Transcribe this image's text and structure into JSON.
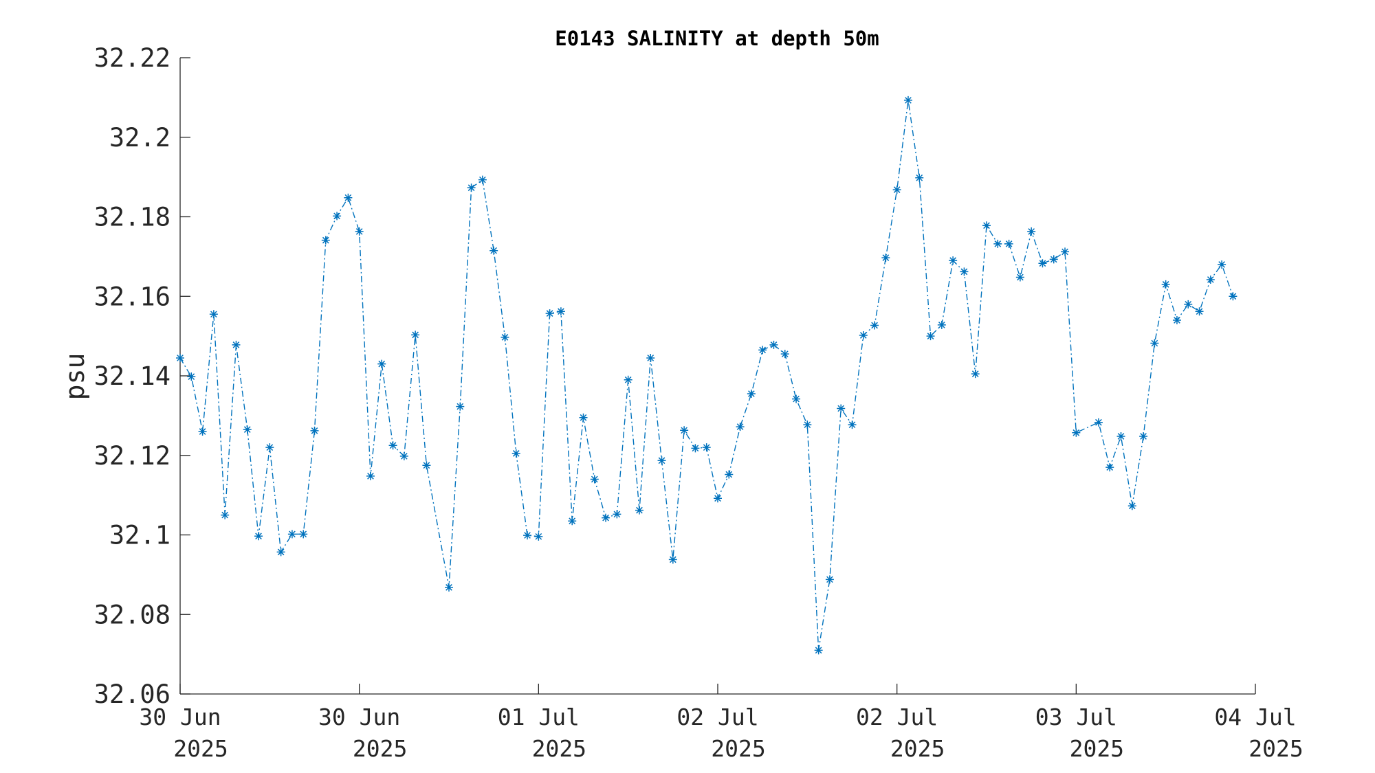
{
  "chart_data": {
    "type": "line",
    "title": "E0143 SALINITY at depth 50m",
    "ylabel": "psu",
    "xlabel": "",
    "ylim": [
      32.06,
      32.22
    ],
    "yticks": [
      32.06,
      32.08,
      32.1,
      32.12,
      32.14,
      32.16,
      32.18,
      32.2,
      32.22
    ],
    "ytick_labels": [
      "32.06",
      "32.08",
      "32.1",
      "32.12",
      "32.14",
      "32.16",
      "32.18",
      "32.2",
      "32.22"
    ],
    "xlim": [
      0,
      96
    ],
    "xticks": [
      {
        "x": 0,
        "line1": "30 Jun",
        "line2": "2025"
      },
      {
        "x": 16,
        "line1": "30 Jun",
        "line2": "2025"
      },
      {
        "x": 32,
        "line1": "01 Jul",
        "line2": "2025"
      },
      {
        "x": 48,
        "line1": "02 Jul",
        "line2": "2025"
      },
      {
        "x": 64,
        "line1": "02 Jul",
        "line2": "2025"
      },
      {
        "x": 80,
        "line1": "03 Jul",
        "line2": "2025"
      },
      {
        "x": 96,
        "line1": "04 Jul",
        "line2": "2025"
      }
    ],
    "grid": false,
    "marker": "asterisk",
    "line_style": "dash-dot",
    "color": "#0072BD",
    "series": [
      {
        "x": [
          0,
          1,
          2,
          3,
          4,
          5,
          6,
          7,
          8,
          9,
          10,
          11,
          12,
          13,
          14,
          15,
          16,
          17,
          18,
          19,
          20,
          21,
          22,
          23,
          24,
          25,
          26,
          27,
          28,
          29,
          30,
          31,
          32,
          33,
          34,
          35,
          36,
          37,
          38,
          39,
          40,
          41,
          42,
          43,
          44,
          45,
          46,
          47,
          48,
          49,
          50,
          51,
          52,
          53,
          54,
          55,
          56,
          57,
          58,
          59,
          60,
          61,
          62,
          63,
          64,
          65,
          66,
          67,
          68,
          69,
          70,
          71,
          72,
          73,
          74,
          75,
          76,
          77,
          78,
          79,
          80,
          81,
          82,
          83,
          84,
          85,
          86,
          87,
          88,
          89,
          90,
          91,
          92,
          93,
          94,
          95,
          96
        ],
        "values": [
          32.1445,
          32.1398,
          32.126,
          32.1555,
          32.105,
          32.1478,
          32.1265,
          32.0997,
          32.122,
          32.0957,
          32.1002,
          32.1002,
          32.1262,
          32.1741,
          32.1802,
          32.1848,
          32.1763,
          32.1148,
          32.143,
          32.1225,
          32.1198,
          32.1503,
          32.1175,
          null,
          32.0868,
          32.1323,
          32.1873,
          32.1893,
          32.1715,
          32.1497,
          32.1205,
          32.0999,
          32.0996,
          32.1557,
          32.1562,
          32.1035,
          32.1295,
          32.114,
          32.1043,
          32.1052,
          32.139,
          32.1062,
          32.1445,
          32.1187,
          32.0938,
          32.1263,
          32.1218,
          32.122,
          32.1092,
          32.1152,
          32.1272,
          32.1355,
          32.1465,
          32.1478,
          32.1455,
          32.1342,
          32.1277,
          32.071,
          32.0888,
          32.1318,
          32.1277,
          32.1502,
          32.1527,
          32.1697,
          32.1868,
          32.2093,
          32.1898,
          32.15,
          32.1528,
          32.169,
          32.1662,
          32.1405,
          32.1778,
          32.1732,
          32.1732,
          32.1648,
          32.1763,
          32.1683,
          32.1693,
          32.1712,
          32.1257,
          null,
          32.1283,
          32.117,
          32.1248,
          32.1073,
          32.1248,
          32.1482,
          32.163,
          32.154,
          32.158,
          32.1562,
          32.1642,
          32.168,
          32.16,
          null,
          null
        ]
      }
    ]
  }
}
